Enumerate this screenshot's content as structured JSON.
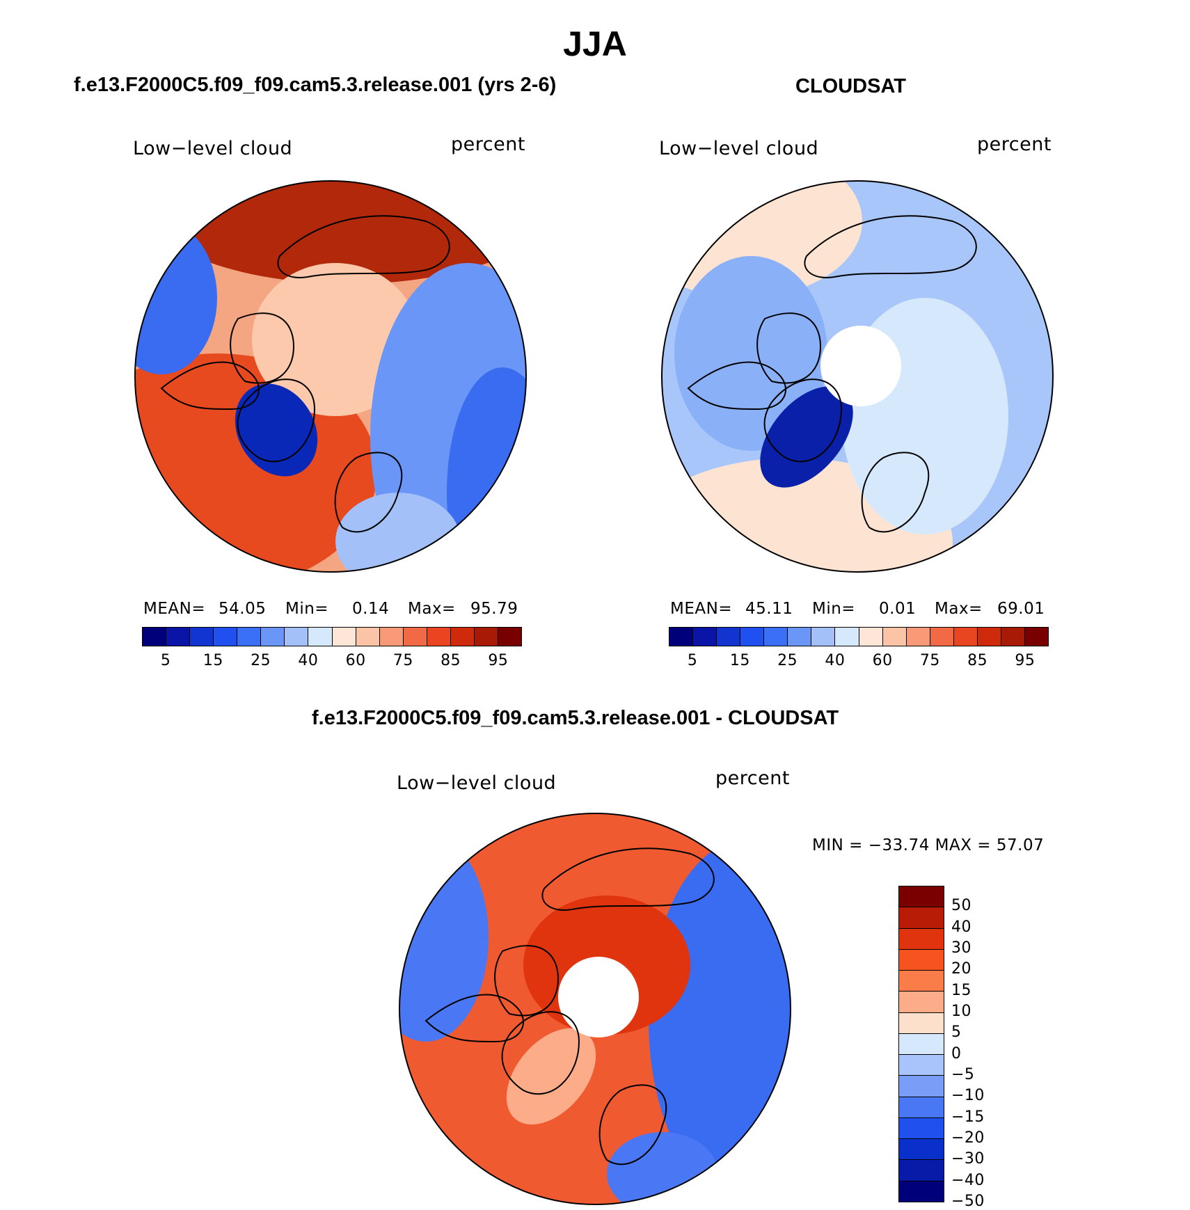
{
  "main_title": "JJA",
  "colors": {
    "scale_16": [
      "#00007a",
      "#0a15a8",
      "#1234d0",
      "#2050f0",
      "#3a70f5",
      "#6a96f7",
      "#a4c0f9",
      "#d6e8fb",
      "#fde6d6",
      "#fcc4a6",
      "#f89a78",
      "#f26a45",
      "#e84520",
      "#d02a0c",
      "#a81a06",
      "#780000"
    ],
    "scale_diff_top_to_bottom": [
      "#7a0000",
      "#b81c06",
      "#e0340e",
      "#f55420",
      "#fa7c48",
      "#fcac88",
      "#fde0cc",
      "#d6e8fb",
      "#a8c4fa",
      "#7a9ef8",
      "#4a78f4",
      "#2050ee",
      "#0a30cc",
      "#081aa8",
      "#00007a"
    ]
  },
  "panels": {
    "model": {
      "title": "f.e13.F2000C5.f09_f09.cam5.3.release.001 (yrs 2-6)",
      "field": "Low−level cloud",
      "units": "percent",
      "mean_label": "MEAN=",
      "mean": "54.05",
      "min_label": "Min=",
      "min": "0.14",
      "max_label": "Max=",
      "max": "95.79",
      "ticks": [
        "5",
        "15",
        "25",
        "40",
        "60",
        "75",
        "85",
        "95"
      ],
      "map_bg": "#f4a582",
      "map_regions": [
        {
          "name": "siberia-maximum",
          "color": "#b2280a"
        },
        {
          "name": "arctic-ocean",
          "color": "#fcc9ac"
        },
        {
          "name": "north-atlantic",
          "color": "#e84a20"
        },
        {
          "name": "greenland-interior",
          "color": "#0a28b8"
        },
        {
          "name": "north-america-interior",
          "color": "#3a6cf2"
        },
        {
          "name": "eurasia-interior",
          "color": "#6a96f7"
        },
        {
          "name": "europe",
          "color": "#a4c0f9"
        }
      ]
    },
    "obs": {
      "title": "CLOUDSAT",
      "field": "Low−level cloud",
      "units": "percent",
      "mean_label": "MEAN=",
      "mean": "45.11",
      "min_label": "Min=",
      "min": "0.01",
      "max_label": "Max=",
      "max": "69.01",
      "ticks": [
        "5",
        "15",
        "25",
        "40",
        "60",
        "75",
        "85",
        "95"
      ],
      "map_bg": "#a8c6fa",
      "map_regions": [
        {
          "name": "pacific-sector",
          "color": "#fde4d2"
        },
        {
          "name": "atlantic-sector",
          "color": "#fde4d2"
        },
        {
          "name": "siberia",
          "color": "#d6e8fb"
        },
        {
          "name": "greenland-minimum",
          "color": "#0a20a8"
        },
        {
          "name": "north-america",
          "color": "#8ab0f8"
        }
      ]
    },
    "diff": {
      "title": "f.e13.F2000C5.f09_f09.cam5.3.release.001 - CLOUDSAT",
      "field": "Low−level cloud",
      "units": "percent",
      "minmax_text": "MIN = −33.74 MAX =   57.07",
      "ticks": [
        "50",
        "40",
        "30",
        "20",
        "15",
        "10",
        "5",
        "0",
        "−5",
        "−10",
        "−15",
        "−20",
        "−30",
        "−40",
        "−50"
      ],
      "map_bg": "#f05a30",
      "map_regions": [
        {
          "name": "eurasia-negative",
          "color": "#3a6cf2"
        },
        {
          "name": "north-america-negative",
          "color": "#4a78f4"
        },
        {
          "name": "arctic-positive",
          "color": "#e0340e"
        },
        {
          "name": "greenland-mixed",
          "color": "#fcac88"
        }
      ]
    }
  }
}
